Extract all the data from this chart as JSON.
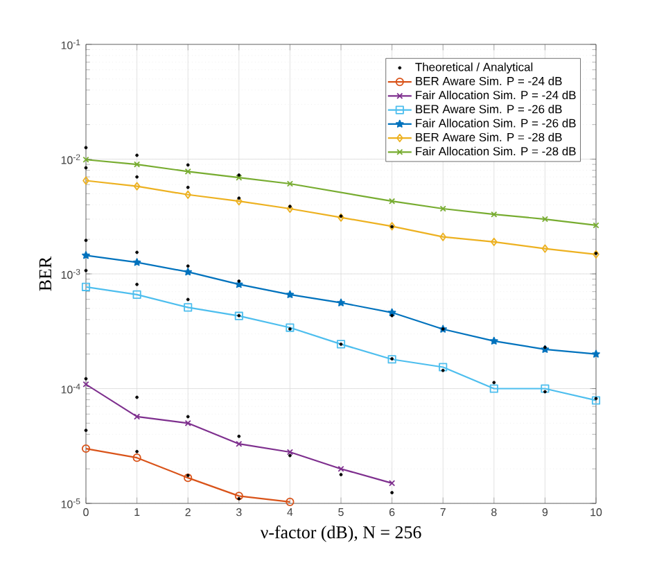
{
  "chart_data": {
    "type": "line",
    "xlabel": "ν-factor (dB), N = 256",
    "ylabel": "BER",
    "x": [
      0,
      1,
      2,
      3,
      4,
      5,
      6,
      7,
      8,
      9,
      10
    ],
    "xlim": [
      0,
      10
    ],
    "xticks": [
      0,
      1,
      2,
      3,
      4,
      5,
      6,
      7,
      8,
      9,
      10
    ],
    "ylim": [
      1e-05,
      0.1
    ],
    "log": "y",
    "yticks": [
      {
        "value": 1e-05,
        "label": "10$^{-5}$"
      },
      {
        "value": 0.0001,
        "label": "10$^{-4}$"
      },
      {
        "value": 0.001,
        "label": "10$^{-3}$"
      },
      {
        "value": 0.01,
        "label": "10$^{-2}$"
      },
      {
        "value": 0.1,
        "label": "10$^{-1}$"
      }
    ],
    "grid": true,
    "legend": "top right",
    "line_style": "solid",
    "series": [
      {
        "name": "Theoretical / Analytical",
        "type": "scatter",
        "marker": "circle",
        "color": "#000000",
        "x": [
          0,
          0,
          0,
          0,
          0,
          0,
          1,
          1,
          1,
          1,
          1,
          1,
          2,
          2,
          2,
          2,
          2,
          2,
          3,
          3,
          3,
          3,
          3,
          3,
          4,
          4,
          4,
          5,
          5,
          5,
          6,
          6,
          6,
          6,
          7,
          7,
          8,
          9,
          9,
          10,
          10
        ],
        "values": [
          0.0126,
          0.0084,
          0.00196,
          0.00107,
          0.000122,
          4.33e-05,
          0.0108,
          0.007,
          0.00154,
          0.00081,
          8.4e-05,
          2.83e-05,
          0.0089,
          0.00567,
          0.00117,
          0.000598,
          5.7e-05,
          1.75e-05,
          0.00727,
          0.00457,
          0.000865,
          0.000433,
          3.84e-05,
          1.1e-05,
          0.00387,
          0.000331,
          2.61e-05,
          0.00319,
          0.000244,
          1.78e-05,
          0.00258,
          0.000433,
          0.000182,
          1.24e-05,
          0.000331,
          0.000144,
          0.000113,
          0.000229,
          9.4e-05,
          0.00151,
          8.19e-05
        ]
      },
      {
        "name": "BER Aware Sim. P = -24 dB",
        "marker": "circle",
        "color": "#d95319",
        "values": [
          3e-05,
          2.5e-05,
          1.67e-05,
          1.16e-05,
          1.03e-05,
          null,
          null,
          null,
          null,
          null,
          null
        ]
      },
      {
        "name": "Fair Allocation Sim. P = -24 dB",
        "marker": "cross",
        "color": "#7e2f8e",
        "values": [
          0.000109,
          5.7e-05,
          5e-05,
          3.3e-05,
          2.8e-05,
          2e-05,
          1.5e-05,
          null,
          null,
          null,
          null
        ]
      },
      {
        "name": "BER Aware Sim. P = -26 dB",
        "marker": "square",
        "color": "#4dbeee",
        "values": [
          0.00077,
          0.00066,
          0.00051,
          0.00043,
          0.00034,
          0.000244,
          0.00018,
          0.000154,
          0.0001,
          0.0001,
          7.9e-05
        ]
      },
      {
        "name": "Fair Allocation Sim. P = -26 dB",
        "marker": "star",
        "color": "#0072bd",
        "values": [
          0.00145,
          0.00126,
          0.00104,
          0.00081,
          0.00066,
          0.00056,
          0.00046,
          0.00033,
          0.00026,
          0.00022,
          0.0002
        ]
      },
      {
        "name": "BER Aware Sim. P = -28 dB",
        "marker": "diamond",
        "color": "#edb120",
        "values": [
          0.0065,
          0.0058,
          0.0049,
          0.0043,
          0.0037,
          0.0031,
          0.0026,
          0.0021,
          0.0019,
          0.00166,
          0.00148
        ]
      },
      {
        "name": "Fair Allocation Sim. P = -28 dB",
        "marker": "cross",
        "color": "#77ac30",
        "values": [
          0.0099,
          0.009,
          0.0078,
          0.0069,
          0.0061,
          null,
          0.0043,
          0.0037,
          0.0033,
          0.003,
          0.00265
        ]
      }
    ]
  }
}
